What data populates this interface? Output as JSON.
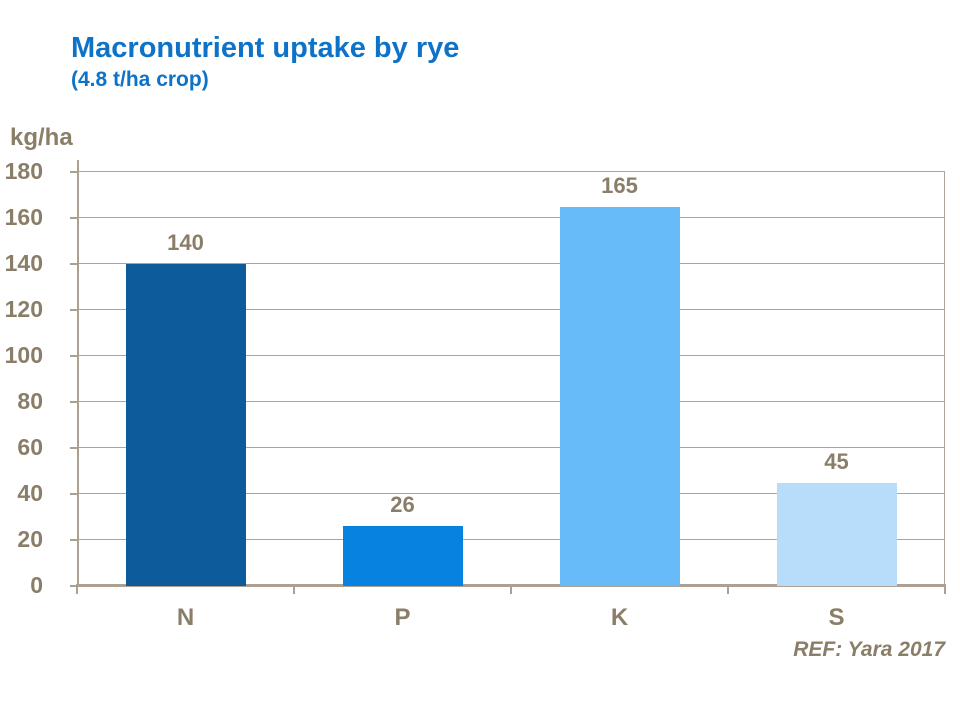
{
  "header": {
    "title": "Macronutrient uptake by rye",
    "subtitle": "(4.8 t/ha crop)"
  },
  "footer": {
    "reference": "REF: Yara 2017"
  },
  "chart_data": {
    "type": "bar",
    "title": "Macronutrient uptake by rye",
    "subtitle": "(4.8 t/ha crop)",
    "categories": [
      "N",
      "P",
      "K",
      "S"
    ],
    "values": [
      140,
      26,
      165,
      45
    ],
    "bar_colors": [
      "#0E5B9B",
      "#0882E0",
      "#66BBF8",
      "#B7DDFB"
    ],
    "xlabel": "",
    "ylabel": "kg/ha",
    "ylim": [
      0,
      180
    ],
    "ytick_step": 20,
    "grid": true,
    "legend": false,
    "annotation": "REF: Yara 2017"
  },
  "colors": {
    "title_blue": "#0E73C8",
    "axis_text_brown": "#8A7E68",
    "gridline_tan": "#AFA597",
    "axis_line_tan": "#ABA092",
    "background": "#FFFFFF"
  }
}
